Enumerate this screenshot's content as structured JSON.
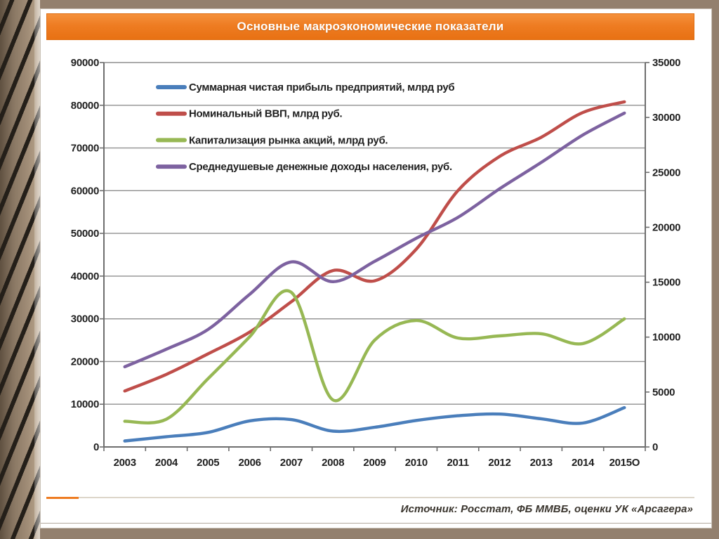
{
  "page": {
    "title": "Основные макроэкономические показатели"
  },
  "footer": {
    "source": "Источник: Росстат, ФБ ММВБ, оценки УК «Арсагера»"
  },
  "theme": {
    "page_bg": "#93806e",
    "slide_bg": "#ffffff",
    "header_bg": "#ee7c22",
    "header_text": "#ffffff",
    "grid_color": "#8f8f8f",
    "axis_color": "#6e6e6e",
    "label_color": "#1f1f1f",
    "accent_orange": "#ee7c22"
  },
  "chart_data": {
    "type": "line",
    "smoothed": true,
    "grid": true,
    "legend_position": "top-left",
    "categories": [
      "2003",
      "2004",
      "2005",
      "2006",
      "2007",
      "2008",
      "2009",
      "2010",
      "2011",
      "2012",
      "2013",
      "2014",
      "2015О"
    ],
    "left_axis": {
      "min": 0,
      "max": 90000,
      "step": 10000
    },
    "right_axis": {
      "min": 0,
      "max": 35000,
      "step": 5000
    },
    "series": [
      {
        "name": "Суммарная чистая прибыль предприятий, млрд руб",
        "axis": "left",
        "color": "#4a7ebb",
        "values": [
          1400,
          2400,
          3400,
          6100,
          6400,
          3700,
          4600,
          6200,
          7300,
          7700,
          6600,
          5600,
          9200
        ]
      },
      {
        "name": "Номинальный ВВП, млрд руб.",
        "axis": "left",
        "color": "#bf4e4a",
        "values": [
          13100,
          17000,
          21800,
          26900,
          34000,
          41300,
          38900,
          46300,
          60000,
          68000,
          72500,
          78300,
          80800
        ]
      },
      {
        "name": "Капитализация рынка акций, млрд руб.",
        "axis": "left",
        "color": "#97b854",
        "values": [
          6000,
          6500,
          16000,
          25800,
          36200,
          11000,
          25000,
          29600,
          25500,
          26000,
          26500,
          24200,
          30000
        ]
      },
      {
        "name": "Среднедушевые денежные доходы населения, руб.",
        "axis": "right",
        "color": "#7d62a0",
        "values": [
          7300,
          8900,
          10700,
          13900,
          16850,
          15050,
          16900,
          19000,
          20900,
          23500,
          25900,
          28400,
          30400
        ]
      }
    ]
  }
}
